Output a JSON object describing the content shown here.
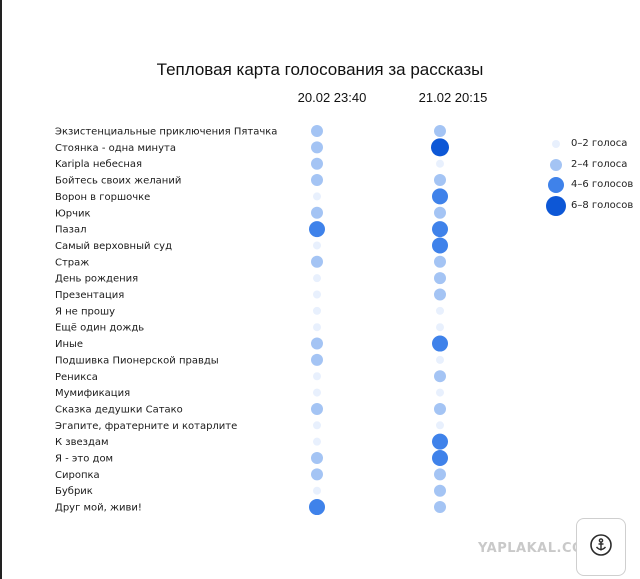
{
  "chart_data": {
    "type": "heatmap",
    "title": "Тепловая карта голосования за рассказы",
    "columns": [
      "20.02 23:40",
      "21.02 20:15"
    ],
    "rows": [
      "Экзистенциальные приключения Пятачка",
      "Стоянка - одна минута",
      "Karipla небесная",
      "Бойтесь своих желаний",
      "Ворон в горшочке",
      "Юрчик",
      "Пазал",
      "Самый верховный суд",
      "Страж",
      "День рождения",
      "Презентация",
      "Я не прошу",
      "Ещё один дождь",
      "Иные",
      "Подшивка Пионерской правды",
      "Реникса",
      "Мумификация",
      "Сказка дедушки Сатако",
      "Эгапите, фратерните и котарлите",
      "К звездам",
      "Я - это дом",
      "Сиропка",
      "Бубрик",
      "Друг мой, живи!"
    ],
    "bins": [
      {
        "label": "0–2 голоса",
        "color": "#e8f0fd"
      },
      {
        "label": "2–4 голоса",
        "color": "#a4c4f4"
      },
      {
        "label": "4–6 голосов",
        "color": "#3f82ea"
      },
      {
        "label": "6–8 голосов",
        "color": "#0d57d6"
      }
    ],
    "bin_index": [
      [
        1,
        1
      ],
      [
        1,
        3
      ],
      [
        1,
        0
      ],
      [
        1,
        1
      ],
      [
        0,
        2
      ],
      [
        1,
        1
      ],
      [
        2,
        2
      ],
      [
        0,
        2
      ],
      [
        1,
        1
      ],
      [
        0,
        1
      ],
      [
        0,
        1
      ],
      [
        0,
        0
      ],
      [
        0,
        0
      ],
      [
        1,
        2
      ],
      [
        1,
        0
      ],
      [
        0,
        1
      ],
      [
        0,
        0
      ],
      [
        1,
        1
      ],
      [
        0,
        0
      ],
      [
        0,
        2
      ],
      [
        1,
        2
      ],
      [
        1,
        1
      ],
      [
        0,
        1
      ],
      [
        2,
        1
      ]
    ],
    "legend_position": "right",
    "grid": false
  },
  "watermark": "YAPLAKAL.COM",
  "icons": {
    "corner": "anchor-icon"
  }
}
